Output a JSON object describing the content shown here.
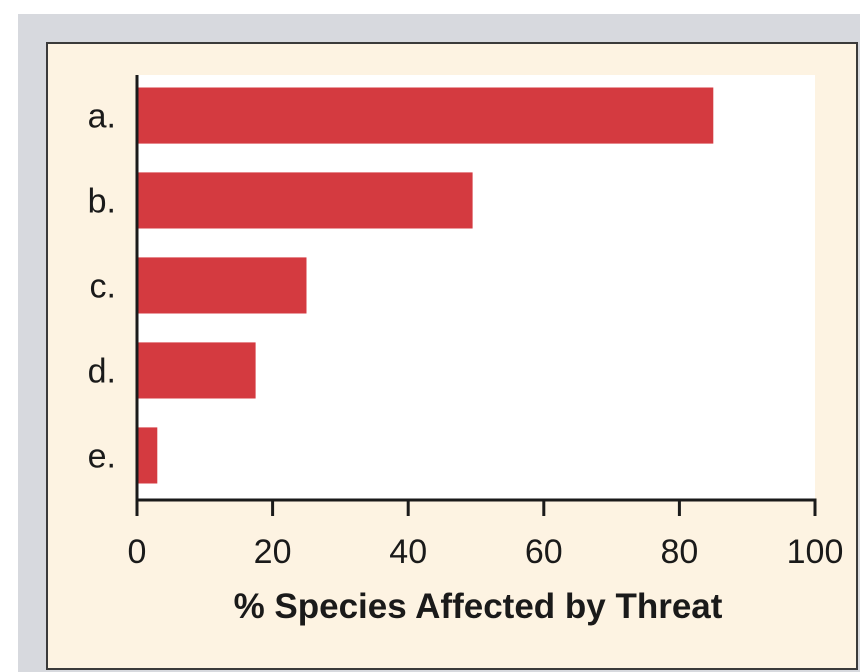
{
  "chart_data": {
    "type": "bar",
    "orientation": "horizontal",
    "categories": [
      "a.",
      "b.",
      "c.",
      "d.",
      "e."
    ],
    "values": [
      85,
      49.5,
      25,
      17.5,
      3
    ],
    "xlabel": "% Species Affected by Threat",
    "xlim": [
      0,
      100
    ],
    "xticks": [
      0,
      20,
      40,
      60,
      80,
      100
    ],
    "grid": false,
    "legend": "none",
    "bar_color": "#d43a40",
    "plot_background": "#ffffff",
    "panel_background": "#fdf3e2",
    "axis_color": "#1a1a1a"
  }
}
